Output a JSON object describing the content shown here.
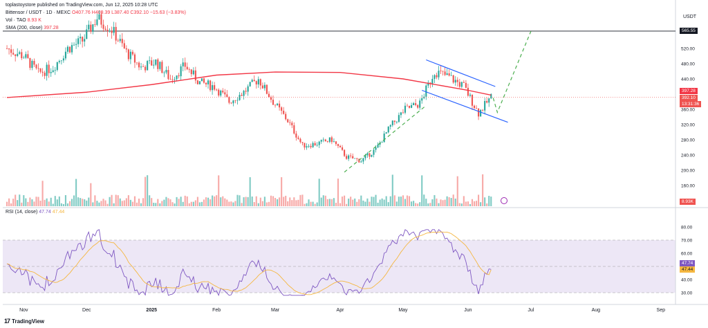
{
  "header": {
    "publisher": "toplastoystore published on TradingView.com, Jun 12, 2025 10:28 UTC"
  },
  "legend": {
    "line1": "Bittensor / USDT · 1D · MEXC",
    "ohlc": "O407.76 H409.39 L387.40 C392.10 −15.63 (−3.83%)",
    "line2_label": "Vol · TAO",
    "line2_value": "8.93 K",
    "line3_label": "SMA (200, close)",
    "line3_value": "397.28"
  },
  "price_axis": {
    "currency": "USDT",
    "ticks": [
      "520.00",
      "480.00",
      "440.00",
      "360.00",
      "320.00",
      "280.00",
      "240.00",
      "200.00",
      "160.00"
    ],
    "label_resistance": "565.55",
    "label_sma": "397.28",
    "label_close": "392.10",
    "label_countdown": "13:31:36",
    "label_volume": "8.93K"
  },
  "rsi": {
    "legend_label": "RSI (14, close)",
    "rsi_value": "47.74",
    "ma_value": "47.44",
    "ticks": [
      "80.00",
      "70.00",
      "60.00",
      "50.00",
      "40.00",
      "30.00"
    ]
  },
  "time_axis": [
    "Nov",
    "Dec",
    "2025",
    "Feb",
    "Mar",
    "Apr",
    "May",
    "Jun",
    "Jul",
    "Aug",
    "Sep"
  ],
  "brand": {
    "logo": "17",
    "name": "TradingView"
  },
  "colors": {
    "up": "#26a69a",
    "down": "#ef5350",
    "sma": "#f23645",
    "rsi": "#7e57c2",
    "rsi_ma": "#f5b740",
    "channel": "#2962ff",
    "projection": "#4caf50",
    "bg_rsi": "#ede7f6"
  },
  "chart_data": {
    "type": "candlestick",
    "title": "Bittensor / USDT · 1D · MEXC",
    "ylim": [
      130,
      600
    ],
    "resistance_level": 565.55,
    "close_series_approx": [
      {
        "x": "2024-10-24",
        "y": 520
      },
      {
        "x": "2024-11-01",
        "y": 500
      },
      {
        "x": "2024-11-08",
        "y": 455
      },
      {
        "x": "2024-11-15",
        "y": 470
      },
      {
        "x": "2024-11-22",
        "y": 520
      },
      {
        "x": "2024-11-29",
        "y": 540
      },
      {
        "x": "2024-12-06",
        "y": 600
      },
      {
        "x": "2024-12-13",
        "y": 570
      },
      {
        "x": "2024-12-20",
        "y": 510
      },
      {
        "x": "2024-12-27",
        "y": 470
      },
      {
        "x": "2025-01-03",
        "y": 485
      },
      {
        "x": "2025-01-10",
        "y": 440
      },
      {
        "x": "2025-01-17",
        "y": 475
      },
      {
        "x": "2025-01-24",
        "y": 430
      },
      {
        "x": "2025-01-31",
        "y": 420
      },
      {
        "x": "2025-02-07",
        "y": 380
      },
      {
        "x": "2025-02-14",
        "y": 405
      },
      {
        "x": "2025-02-21",
        "y": 440
      },
      {
        "x": "2025-02-28",
        "y": 380
      },
      {
        "x": "2025-03-07",
        "y": 330
      },
      {
        "x": "2025-03-14",
        "y": 265
      },
      {
        "x": "2025-03-21",
        "y": 270
      },
      {
        "x": "2025-03-28",
        "y": 280
      },
      {
        "x": "2025-04-04",
        "y": 235
      },
      {
        "x": "2025-04-11",
        "y": 225
      },
      {
        "x": "2025-04-18",
        "y": 255
      },
      {
        "x": "2025-04-25",
        "y": 315
      },
      {
        "x": "2025-05-02",
        "y": 360
      },
      {
        "x": "2025-05-09",
        "y": 375
      },
      {
        "x": "2025-05-16",
        "y": 460
      },
      {
        "x": "2025-05-23",
        "y": 445
      },
      {
        "x": "2025-05-30",
        "y": 420
      },
      {
        "x": "2025-06-06",
        "y": 350
      },
      {
        "x": "2025-06-12",
        "y": 392.1
      }
    ],
    "sma200_approx": [
      {
        "x": "2024-10-24",
        "y": 391
      },
      {
        "x": "2024-12-01",
        "y": 405
      },
      {
        "x": "2025-01-01",
        "y": 425
      },
      {
        "x": "2025-02-01",
        "y": 450
      },
      {
        "x": "2025-03-01",
        "y": 458
      },
      {
        "x": "2025-04-01",
        "y": 457
      },
      {
        "x": "2025-05-01",
        "y": 440
      },
      {
        "x": "2025-06-01",
        "y": 410
      },
      {
        "x": "2025-06-12",
        "y": 397.28
      }
    ],
    "volume_last": "8.93K",
    "rsi": {
      "period": 14,
      "value": 47.74,
      "ma": 47.44,
      "ylim": [
        25,
        82
      ],
      "bands": [
        30,
        70
      ]
    }
  }
}
